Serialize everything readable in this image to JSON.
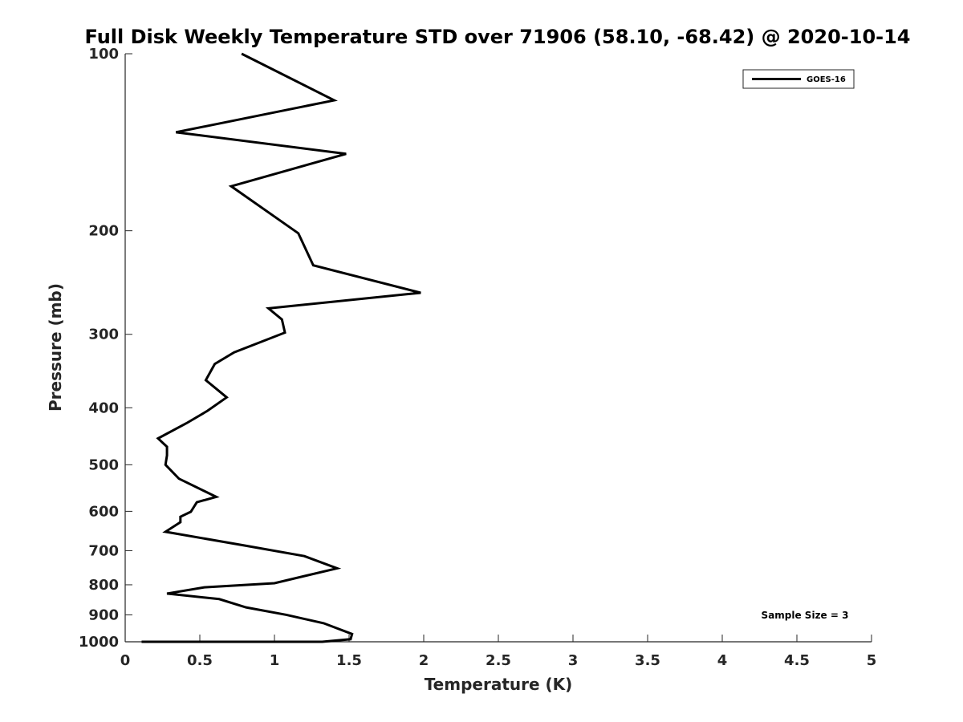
{
  "chart_data": {
    "type": "line",
    "title": "Full Disk Weekly Temperature STD over 71906 (58.10, -68.42) @ 2020-10-14",
    "xlabel": "Temperature (K)",
    "ylabel": "Pressure (mb)",
    "xlim": [
      0,
      5
    ],
    "ylim": [
      100,
      1000
    ],
    "y_scale": "log",
    "y_reversed": true,
    "grid": false,
    "legend_position": "top-right",
    "x_ticks": [
      "0",
      "0.5",
      "1",
      "1.5",
      "2",
      "2.5",
      "3",
      "3.5",
      "4",
      "4.5",
      "5"
    ],
    "y_ticks": [
      "100",
      "200",
      "300",
      "400",
      "500",
      "600",
      "700",
      "800",
      "900",
      "1000"
    ],
    "series": [
      {
        "name": "GOES-16",
        "color": "#000000",
        "x": [
          0.78,
          1.4,
          0.34,
          1.48,
          0.71,
          1.16,
          1.26,
          1.98,
          0.96,
          1.05,
          1.07,
          0.73,
          0.6,
          0.54,
          0.68,
          0.55,
          0.41,
          0.22,
          0.28,
          0.28,
          0.27,
          0.36,
          0.61,
          0.48,
          0.44,
          0.37,
          0.37,
          0.27,
          0.8,
          1.2,
          1.42,
          1.0,
          0.53,
          0.28,
          0.63,
          0.81,
          1.08,
          1.33,
          1.52,
          1.51,
          1.32,
          0.61,
          0.46,
          0.32,
          0.26,
          0.11
        ],
        "y": [
          100,
          120,
          136,
          148,
          168,
          202,
          229,
          255,
          271,
          283,
          298,
          322,
          337,
          359,
          384,
          405,
          425,
          451,
          466,
          482,
          500,
          528,
          567,
          579,
          601,
          613,
          626,
          650,
          686,
          715,
          750,
          795,
          808,
          828,
          846,
          874,
          900,
          930,
          970,
          990,
          1010,
          1040,
          1065,
          1080,
          1090,
          1120
        ]
      }
    ],
    "annotations": [
      "Sample Size = 3"
    ]
  }
}
